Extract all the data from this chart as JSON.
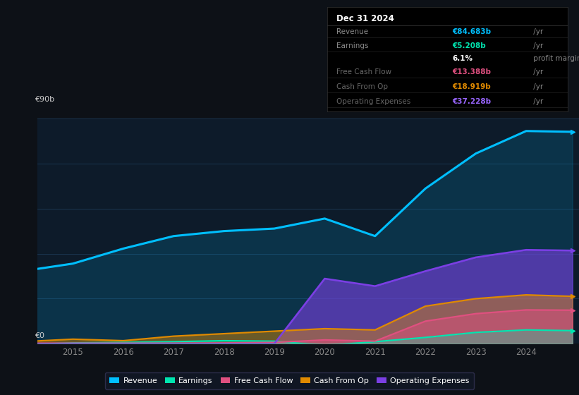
{
  "background_color": "#0d1117",
  "chart_bg_color": "#0d1b2a",
  "years": [
    2014.0,
    2015.0,
    2016.0,
    2017.0,
    2018.0,
    2019.0,
    2020.0,
    2021.0,
    2022.0,
    2023.0,
    2024.0,
    2024.92
  ],
  "revenue": [
    29,
    32,
    38,
    43,
    45,
    46,
    50,
    43,
    62,
    76,
    85,
    84.683
  ],
  "earnings": [
    -0.3,
    0.3,
    0.5,
    0.8,
    1.2,
    1.0,
    -0.8,
    0.8,
    2.5,
    4.5,
    5.5,
    5.208
  ],
  "free_cash_flow": [
    0.2,
    0.2,
    0.2,
    0.2,
    0.3,
    0.5,
    1.5,
    1.0,
    9.0,
    12.0,
    13.5,
    13.388
  ],
  "cash_from_op": [
    0.8,
    1.8,
    1.2,
    3.0,
    4.0,
    5.0,
    6.0,
    5.5,
    15.0,
    18.0,
    19.5,
    18.919
  ],
  "operating_exp": [
    0.0,
    0.0,
    0.0,
    0.0,
    0.0,
    0.0,
    26.0,
    23.0,
    29.0,
    34.5,
    37.5,
    37.228
  ],
  "revenue_color": "#00bfff",
  "earnings_color": "#00e5b0",
  "free_cash_flow_color": "#e05080",
  "cash_from_op_color": "#e08a00",
  "operating_exp_color": "#7b3fe4",
  "ylim": [
    0,
    90
  ],
  "info_box": {
    "date": "Dec 31 2024",
    "revenue_label": "Revenue",
    "revenue_val": "€84.683b",
    "earnings_label": "Earnings",
    "earnings_val": "€5.208b",
    "profit_margin": "6.1%",
    "fcf_label": "Free Cash Flow",
    "fcf_val": "€13.388b",
    "cashop_label": "Cash From Op",
    "cashop_val": "€18.919b",
    "opex_label": "Operating Expenses",
    "opex_val": "€37.228b"
  },
  "legend_items": [
    {
      "label": "Revenue",
      "color": "#00bfff"
    },
    {
      "label": "Earnings",
      "color": "#00e5b0"
    },
    {
      "label": "Free Cash Flow",
      "color": "#e05080"
    },
    {
      "label": "Cash From Op",
      "color": "#e08a00"
    },
    {
      "label": "Operating Expenses",
      "color": "#7b3fe4"
    }
  ],
  "xlabel_years": [
    "2015",
    "2016",
    "2017",
    "2018",
    "2019",
    "2020",
    "2021",
    "2022",
    "2023",
    "2024"
  ],
  "xtick_pos": [
    2015,
    2016,
    2017,
    2018,
    2019,
    2020,
    2021,
    2022,
    2023,
    2024
  ]
}
